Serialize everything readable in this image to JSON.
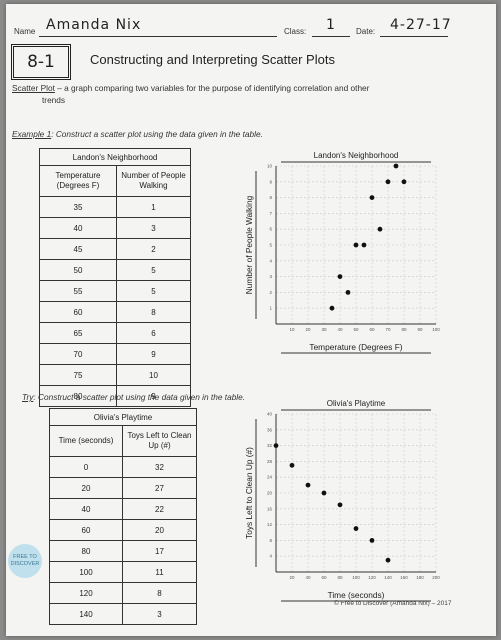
{
  "header": {
    "name_label": "Name",
    "name_value": "Amanda Nix",
    "class_label": "Class:",
    "class_value": "1",
    "date_label": "Date:",
    "date_value": "4-27-17"
  },
  "lesson_number": "8-1",
  "title": "Constructing and Interpreting Scatter Plots",
  "definition": {
    "term": "Scatter Plot",
    "text_line1": " – a graph comparing two variables for the purpose of identifying correlation and other",
    "text_line2": "trends"
  },
  "example": {
    "label": "Example 1",
    "instruction": ": Construct a scatter plot using the data given in the table.",
    "table": {
      "caption": "Landon's Neighborhood",
      "headers": [
        "Temperature (Degrees F)",
        "Number of People Walking"
      ],
      "rows": [
        [
          "35",
          "1"
        ],
        [
          "40",
          "3"
        ],
        [
          "45",
          "2"
        ],
        [
          "50",
          "5"
        ],
        [
          "55",
          "5"
        ],
        [
          "60",
          "8"
        ],
        [
          "65",
          "6"
        ],
        [
          "70",
          "9"
        ],
        [
          "75",
          "10"
        ],
        [
          "80",
          "9"
        ]
      ]
    }
  },
  "try": {
    "label": "Try",
    "instruction": ": Construct a scatter plot using the data given in the table.",
    "table": {
      "caption": "Olivia's Playtime",
      "headers": [
        "Time (seconds)",
        "Toys Left to Clean Up (#)"
      ],
      "rows": [
        [
          "0",
          "32"
        ],
        [
          "20",
          "27"
        ],
        [
          "40",
          "22"
        ],
        [
          "60",
          "20"
        ],
        [
          "80",
          "17"
        ],
        [
          "100",
          "11"
        ],
        [
          "120",
          "8"
        ],
        [
          "140",
          "3"
        ]
      ]
    }
  },
  "chart_data": [
    {
      "type": "scatter",
      "title": "Landon's Neighborhood",
      "xlabel": "Temperature (Degrees F)",
      "ylabel": "Number of People Walking",
      "xlim": [
        0,
        100
      ],
      "ylim": [
        0,
        10
      ],
      "xticks": [
        "10",
        "20",
        "30",
        "40",
        "50",
        "60",
        "70",
        "80",
        "90",
        "100"
      ],
      "yticks": [
        "1",
        "2",
        "3",
        "4",
        "5",
        "6",
        "7",
        "8",
        "9",
        "10"
      ],
      "grid": true,
      "x": [
        35,
        40,
        45,
        50,
        55,
        60,
        65,
        70,
        75,
        80
      ],
      "y": [
        1,
        3,
        2,
        5,
        5,
        8,
        6,
        9,
        10,
        9
      ]
    },
    {
      "type": "scatter",
      "title": "Olivia's Playtime",
      "xlabel": "Time (seconds)",
      "ylabel": "Toys Left to Clean Up (#)",
      "xlim": [
        0,
        200
      ],
      "ylim": [
        0,
        40
      ],
      "xticks": [
        "20",
        "40",
        "60",
        "80",
        "100",
        "120",
        "140",
        "160",
        "180",
        "200"
      ],
      "yticks": [
        "4",
        "8",
        "12",
        "16",
        "20",
        "24",
        "28",
        "32",
        "36",
        "40"
      ],
      "grid": true,
      "x": [
        0,
        20,
        40,
        60,
        80,
        100,
        120,
        140
      ],
      "y": [
        32,
        27,
        22,
        20,
        17,
        11,
        8,
        3
      ]
    }
  ],
  "logo_text": "FREE TO DISCOVER",
  "copyright": "© Free to Discover (Amanda Nix) – 2017"
}
